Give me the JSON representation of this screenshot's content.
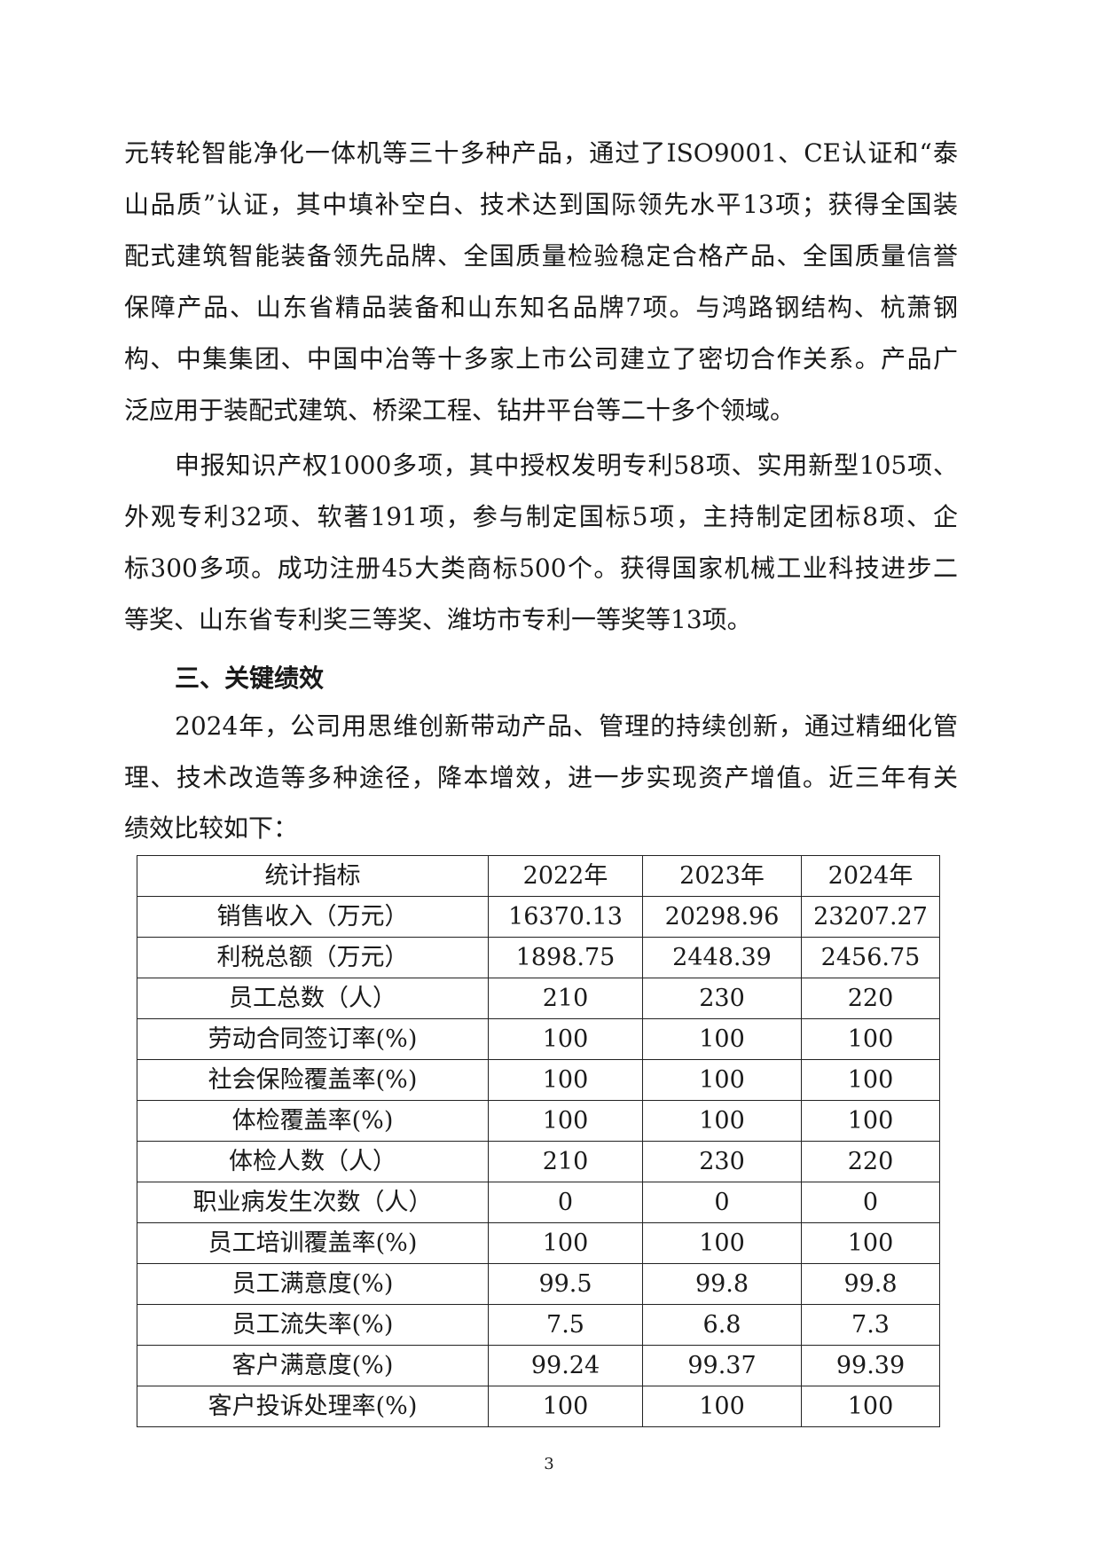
{
  "paragraphs": [
    {
      "indent": false,
      "lines": [
        "元转轮智能净化一体机等三十多种产品，通过了ISO9001、CE认证和“泰",
        "山品质”认证，其中填补空白、技术达到国际领先水平13项；获得全国装",
        "配式建筑智能装备领先品牌、全国质量检验稳定合格产品、全国质量信誉",
        "保障产品、山东省精品装备和山东知名品牌7项。与鸿路钢结构、杭萧钢",
        "构、中集集团、中国中冶等十多家上市公司建立了密切合作关系。产品广",
        "泛应用于装配式建筑、桥梁工程、钻井平台等二十多个领域。"
      ]
    },
    {
      "indent": true,
      "lines": [
        "申报知识产权1000多项，其中授权发明专利58项、实用新型105项、",
        "外观专利32项、软著191项，参与制定国标5项，主持制定团标8项、企",
        "标300多项。成功注册45大类商标500个。获得国家机械工业科技进步二",
        "等奖、山东省专利奖三等奖、潍坊市专利一等奖等13项。"
      ]
    }
  ],
  "heading": "三、关键绩效",
  "paragraph3": {
    "lines": [
      "2024年，公司用思维创新带动产品、管理的持续创新，通过精细化管",
      "理、技术改造等多种途径，降本增效，进一步实现资产增值。近三年有关",
      "绩效比较如下："
    ]
  },
  "table": {
    "headers": [
      "统计指标",
      "2022年",
      "2023年",
      "2024年"
    ],
    "rows": [
      [
        "销售收入（万元）",
        "16370.13",
        "20298.96",
        "23207.27"
      ],
      [
        "利税总额（万元）",
        "1898.75",
        "2448.39",
        "2456.75"
      ],
      [
        "员工总数（人）",
        "210",
        "230",
        "220"
      ],
      [
        "劳动合同签订率(%)",
        "100",
        "100",
        "100"
      ],
      [
        "社会保险覆盖率(%)",
        "100",
        "100",
        "100"
      ],
      [
        "体检覆盖率(%)",
        "100",
        "100",
        "100"
      ],
      [
        "体检人数（人）",
        "210",
        "230",
        "220"
      ],
      [
        "职业病发生次数（人）",
        "0",
        "0",
        "0"
      ],
      [
        "员工培训覆盖率(%)",
        "100",
        "100",
        "100"
      ],
      [
        "员工满意度(%)",
        "99.5",
        "99.8",
        "99.8"
      ],
      [
        "员工流失率(%)",
        "7.5",
        "6.8",
        "7.3"
      ],
      [
        "客户满意度(%)",
        "99.24",
        "99.37",
        "99.39"
      ],
      [
        "客户投诉处理率(%)",
        "100",
        "100",
        "100"
      ]
    ]
  },
  "page_number": "3"
}
